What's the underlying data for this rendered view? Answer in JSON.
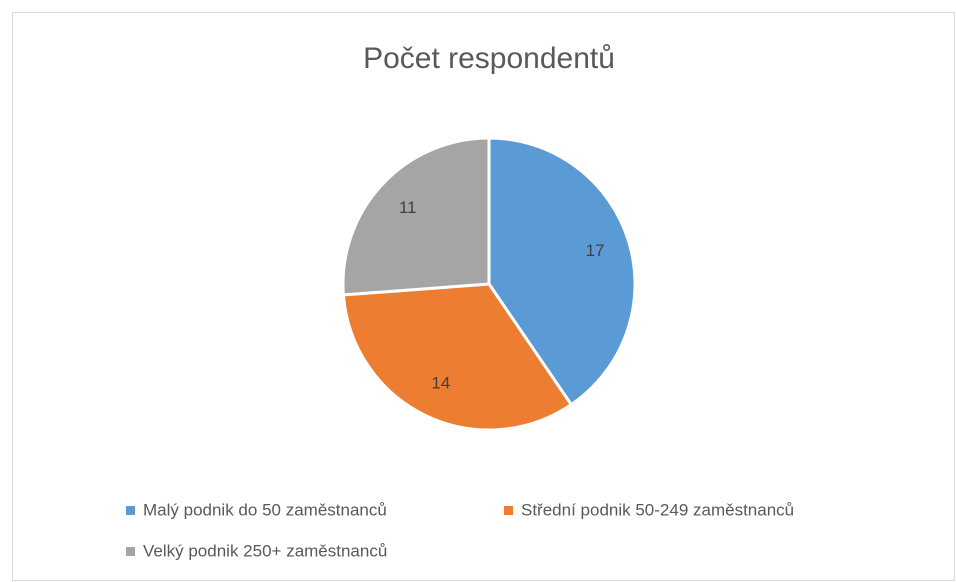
{
  "chart_data": {
    "type": "pie",
    "title": "Počet respondentů",
    "categories": [
      "Malý podnik do 50 zaměstnanců",
      "Střední podnik 50-249 zaměstnanců",
      "Velký podnik 250+ zaměstnanců"
    ],
    "values": [
      17,
      14,
      11
    ],
    "colors": [
      "#5b9bd5",
      "#ed7d31",
      "#a5a5a5"
    ],
    "legend": "bottom"
  }
}
